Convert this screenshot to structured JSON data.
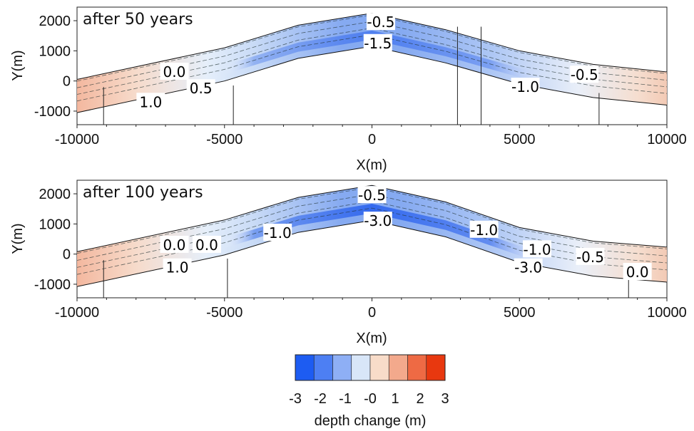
{
  "chart_data": [
    {
      "type": "heatmap",
      "title": "after 50 years",
      "xlabel": "X(m)",
      "ylabel": "Y(m)",
      "xlim": [
        -10000,
        10000
      ],
      "ylim": [
        -1450,
        2450
      ],
      "x_ticks": [
        -10000,
        -5000,
        0,
        5000,
        10000
      ],
      "y_ticks": [
        -1000,
        0,
        1000,
        2000
      ],
      "grid": false,
      "band_centerline": [
        [
          -10000,
          -500
        ],
        [
          -5000,
          550
        ],
        [
          -2500,
          1300
        ],
        [
          0,
          1700
        ],
        [
          2500,
          1150
        ],
        [
          5000,
          450
        ],
        [
          7500,
          0
        ],
        [
          10000,
          -250
        ]
      ],
      "band_halfwidth": 550,
      "sheltered_cut": [
        [
          -9100,
          -200
        ],
        [
          -4700,
          -150
        ],
        [
          2900,
          1800
        ],
        [
          3700,
          1800
        ],
        [
          7700,
          -400
        ]
      ],
      "contour_labels": [
        {
          "text": "-0.5",
          "x": 300,
          "y": 1950
        },
        {
          "text": "-1.5",
          "x": 200,
          "y": 1250
        },
        {
          "text": "-0.5",
          "x": 7200,
          "y": 200
        },
        {
          "text": "-1.0",
          "x": 5200,
          "y": -200
        },
        {
          "text": "0.0",
          "x": -6700,
          "y": 300
        },
        {
          "text": "0.5",
          "x": -5800,
          "y": -250
        },
        {
          "text": "1.0",
          "x": -7500,
          "y": -700
        }
      ]
    },
    {
      "type": "heatmap",
      "title": "after 100 years",
      "xlabel": "X(m)",
      "ylabel": "Y(m)",
      "xlim": [
        -10000,
        10000
      ],
      "ylim": [
        -1450,
        2450
      ],
      "x_ticks": [
        -10000,
        -5000,
        0,
        5000,
        10000
      ],
      "y_ticks": [
        -1000,
        0,
        1000,
        2000
      ],
      "grid": false,
      "band_centerline": [
        [
          -10000,
          -500
        ],
        [
          -5000,
          550
        ],
        [
          -2500,
          1300
        ],
        [
          0,
          1700
        ],
        [
          2500,
          1150
        ],
        [
          5000,
          300
        ],
        [
          7500,
          -150
        ],
        [
          10000,
          -350
        ]
      ],
      "band_halfwidth": 580,
      "sheltered_cut": [
        [
          -9100,
          -200
        ],
        [
          -4900,
          -150
        ],
        [
          8700,
          -500
        ]
      ],
      "contour_labels": [
        {
          "text": "-0.5",
          "x": 0,
          "y": 1950
        },
        {
          "text": "-3.0",
          "x": 200,
          "y": 1100
        },
        {
          "text": "-1.0",
          "x": -3200,
          "y": 700
        },
        {
          "text": "-1.0",
          "x": 3800,
          "y": 800
        },
        {
          "text": "-1.0",
          "x": 5600,
          "y": 150
        },
        {
          "text": "-3.0",
          "x": 5300,
          "y": -450
        },
        {
          "text": "-0.5",
          "x": 7400,
          "y": -100
        },
        {
          "text": "0.0",
          "x": 9000,
          "y": -600
        },
        {
          "text": "0.0",
          "x": -6700,
          "y": 300
        },
        {
          "text": "0.0",
          "x": -5600,
          "y": 300
        },
        {
          "text": "1.0",
          "x": -6600,
          "y": -450
        }
      ]
    }
  ],
  "colorbar": {
    "label": "depth change (m)",
    "range": [
      -3,
      3
    ],
    "ticks": [
      "-3",
      "-2",
      "-1",
      "-0",
      "1",
      "2",
      "3"
    ],
    "colors": [
      "#1d5cf2",
      "#4d7ff3",
      "#8eaff5",
      "#d8e6f8",
      "#f8dcc9",
      "#f3a98c",
      "#ee6a44",
      "#e8380f"
    ]
  }
}
